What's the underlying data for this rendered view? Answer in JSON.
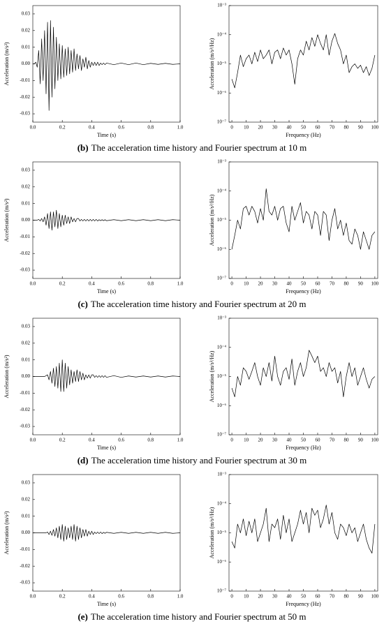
{
  "chart_data": [
    {
      "type": "line",
      "color": "#000000",
      "xlabel": "Time (s)",
      "ylabel": "Acceleration (m/s²)",
      "x": [
        0,
        0.01,
        0.02,
        0.03,
        0.04,
        0.05,
        0.06,
        0.07,
        0.08,
        0.09,
        0.1,
        0.11,
        0.12,
        0.13,
        0.14,
        0.15,
        0.16,
        0.17,
        0.18,
        0.19,
        0.2,
        0.21,
        0.22,
        0.23,
        0.24,
        0.25,
        0.26,
        0.27,
        0.28,
        0.29,
        0.3,
        0.31,
        0.32,
        0.33,
        0.34,
        0.35,
        0.36,
        0.37,
        0.38,
        0.39,
        0.4,
        0.41,
        0.42,
        0.43,
        0.44,
        0.45,
        0.46,
        0.47,
        0.48,
        0.49,
        0.5,
        0.55,
        0.6,
        0.65,
        0.7,
        0.75,
        0.8,
        0.85,
        0.9,
        0.95,
        1.0
      ],
      "values": [
        0,
        0,
        0.001,
        -0.002,
        0.008,
        -0.012,
        0.015,
        -0.01,
        0.02,
        -0.018,
        0.025,
        -0.028,
        0.026,
        -0.02,
        0.022,
        -0.015,
        0.016,
        -0.01,
        0.012,
        -0.009,
        0.011,
        -0.008,
        0.009,
        -0.007,
        0.01,
        -0.006,
        0.008,
        -0.005,
        0.009,
        -0.004,
        0.006,
        -0.003,
        0.005,
        -0.004,
        0.003,
        -0.002,
        0.004,
        -0.003,
        0.002,
        -0.002,
        0.001,
        -0.001,
        0.001,
        -0.001,
        0.001,
        -0.001,
        0.0005,
        -0.0005,
        0.0005,
        -0.0005,
        0.0005,
        -0.0005,
        0.0005,
        -0.0005,
        0.0005,
        -0.0005,
        0.0003,
        -0.0003,
        0.0003,
        -0.0003,
        0
      ],
      "xlim": [
        0,
        1
      ],
      "ylim": [
        -0.035,
        0.035
      ],
      "xticks": [
        {
          "value": 0,
          "label": "0.0"
        },
        0.2,
        0.4,
        0.6,
        0.8,
        {
          "value": 1,
          "label": "1.0"
        }
      ],
      "yticks": [
        -0.03,
        -0.02,
        -0.01,
        {
          "value": 0,
          "label": "0.00"
        },
        0.01,
        0.02,
        0.03
      ]
    },
    {
      "type": "line",
      "color": "#000000",
      "xlabel": "Frequency (Hz)",
      "ylabel": "Acceleration (m/s²/Hz)",
      "log_scale": true,
      "x": [
        0,
        2,
        4,
        6,
        8,
        10,
        12,
        14,
        16,
        18,
        20,
        22,
        24,
        26,
        28,
        30,
        32,
        34,
        36,
        38,
        40,
        42,
        44,
        46,
        48,
        50,
        52,
        54,
        56,
        58,
        60,
        62,
        64,
        66,
        68,
        70,
        72,
        74,
        76,
        78,
        80,
        82,
        84,
        86,
        88,
        90,
        92,
        94,
        96,
        98,
        100
      ],
      "values": [
        3e-06,
        1.5e-06,
        5e-06,
        2e-05,
        8e-06,
        1.5e-05,
        2e-05,
        1e-05,
        2.5e-05,
        1.2e-05,
        3e-05,
        1.5e-05,
        2e-05,
        3e-05,
        1e-05,
        2.5e-05,
        3e-05,
        1.5e-05,
        3.5e-05,
        2e-05,
        3e-05,
        1e-05,
        2e-06,
        1.5e-05,
        3e-05,
        2e-05,
        6e-05,
        3e-05,
        8e-05,
        4e-05,
        0.0001,
        5e-05,
        3e-05,
        0.0001,
        2e-05,
        6e-05,
        0.00011,
        5e-05,
        3e-05,
        1e-05,
        2e-05,
        5e-06,
        8e-06,
        1e-05,
        7e-06,
        9e-06,
        5e-06,
        8e-06,
        4e-06,
        7e-06,
        2e-05
      ],
      "xlim": [
        -2,
        102
      ],
      "ylim": [
        1e-07,
        0.001
      ],
      "xticks": [
        0,
        10,
        20,
        30,
        40,
        50,
        60,
        70,
        80,
        90,
        100
      ],
      "yticks": [
        {
          "value": 1e-07,
          "label": "10⁻⁷"
        },
        {
          "value": 1e-06,
          "label": "10⁻⁶"
        },
        {
          "value": 1e-05,
          "label": "10⁻⁵"
        },
        {
          "value": 0.0001,
          "label": "10⁻⁴"
        },
        {
          "value": 0.001,
          "label": "10⁻³"
        }
      ]
    },
    {
      "type": "line",
      "color": "#000000",
      "xlabel": "Time (s)",
      "ylabel": "Acceleration (m/s²)",
      "x": [
        0,
        0.01,
        0.02,
        0.03,
        0.04,
        0.05,
        0.06,
        0.07,
        0.08,
        0.09,
        0.1,
        0.11,
        0.12,
        0.13,
        0.14,
        0.15,
        0.16,
        0.17,
        0.18,
        0.19,
        0.2,
        0.21,
        0.22,
        0.23,
        0.24,
        0.25,
        0.26,
        0.27,
        0.28,
        0.29,
        0.3,
        0.31,
        0.32,
        0.33,
        0.34,
        0.35,
        0.36,
        0.37,
        0.38,
        0.39,
        0.4,
        0.41,
        0.42,
        0.43,
        0.44,
        0.45,
        0.46,
        0.47,
        0.48,
        0.49,
        0.5,
        0.55,
        0.6,
        0.65,
        0.7,
        0.75,
        0.8,
        0.85,
        0.9,
        0.95,
        1.0
      ],
      "values": [
        0,
        0,
        0,
        0,
        0.0005,
        -0.0005,
        0.001,
        -0.001,
        0.002,
        -0.003,
        0.004,
        -0.005,
        0.005,
        -0.006,
        0.005,
        -0.004,
        0.006,
        -0.005,
        0.004,
        -0.004,
        0.003,
        -0.003,
        0.003,
        -0.002,
        0.002,
        -0.002,
        0.002,
        -0.001,
        0.001,
        -0.001,
        0.001,
        0.001,
        -0.0005,
        0.0005,
        -0.0005,
        0.0005,
        -0.0005,
        0.0005,
        -0.0005,
        0.0005,
        -0.0005,
        0.0005,
        -0.0005,
        0.0005,
        -0.0005,
        0.0003,
        -0.0003,
        0.0003,
        -0.0003,
        0.0003,
        -0.0003,
        0.0003,
        -0.0003,
        0.0003,
        -0.0003,
        0.0003,
        -0.0003,
        0.0003,
        -0.0003,
        0.0003,
        0
      ],
      "xlim": [
        0,
        1
      ],
      "ylim": [
        -0.035,
        0.035
      ],
      "xticks": [
        {
          "value": 0,
          "label": "0.0"
        },
        0.2,
        0.4,
        0.6,
        0.8,
        {
          "value": 1,
          "label": "1.0"
        }
      ],
      "yticks": [
        -0.03,
        -0.02,
        -0.01,
        {
          "value": 0,
          "label": "0.00"
        },
        0.01,
        0.02,
        0.03
      ]
    },
    {
      "type": "line",
      "color": "#000000",
      "xlabel": "Frequency (Hz)",
      "ylabel": "Acceleration (m/s²/Hz)",
      "log_scale": true,
      "x": [
        0,
        2,
        4,
        6,
        8,
        10,
        12,
        14,
        16,
        18,
        20,
        22,
        24,
        26,
        28,
        30,
        32,
        34,
        36,
        38,
        40,
        42,
        44,
        46,
        48,
        50,
        52,
        54,
        56,
        58,
        60,
        62,
        64,
        66,
        68,
        70,
        72,
        74,
        76,
        78,
        80,
        82,
        84,
        86,
        88,
        90,
        92,
        94,
        96,
        98,
        100
      ],
      "values": [
        1e-06,
        3e-06,
        1e-05,
        5e-06,
        2.5e-05,
        3e-05,
        1.5e-05,
        3e-05,
        2e-05,
        8e-06,
        2.5e-05,
        1e-05,
        0.00012,
        2e-05,
        1.5e-05,
        3e-05,
        1e-05,
        2.5e-05,
        3e-05,
        8e-06,
        4e-06,
        3e-05,
        1e-05,
        2e-05,
        4e-05,
        8e-06,
        2e-05,
        1.5e-05,
        5e-06,
        2e-05,
        1.5e-05,
        3e-06,
        2e-05,
        1.5e-05,
        2e-06,
        1e-05,
        2.5e-05,
        5e-06,
        1e-05,
        3e-06,
        8e-06,
        2e-06,
        1.5e-06,
        5e-06,
        3e-06,
        1e-06,
        4e-06,
        2e-06,
        1e-06,
        3e-06,
        4e-06
      ],
      "xlim": [
        -2,
        102
      ],
      "ylim": [
        1e-07,
        0.001
      ],
      "xticks": [
        0,
        10,
        20,
        30,
        40,
        50,
        60,
        70,
        80,
        90,
        100
      ],
      "yticks": [
        {
          "value": 1e-07,
          "label": "10⁻⁷"
        },
        {
          "value": 1e-06,
          "label": "10⁻⁶"
        },
        {
          "value": 1e-05,
          "label": "10⁻⁵"
        },
        {
          "value": 0.0001,
          "label": "10⁻⁴"
        },
        {
          "value": 0.001,
          "label": "10⁻³"
        }
      ]
    },
    {
      "type": "line",
      "color": "#000000",
      "xlabel": "Time (s)",
      "ylabel": "Acceleration (m/s²)",
      "x": [
        0,
        0.01,
        0.02,
        0.03,
        0.04,
        0.05,
        0.06,
        0.07,
        0.08,
        0.09,
        0.1,
        0.11,
        0.12,
        0.13,
        0.14,
        0.15,
        0.16,
        0.17,
        0.18,
        0.19,
        0.2,
        0.21,
        0.22,
        0.23,
        0.24,
        0.25,
        0.26,
        0.27,
        0.28,
        0.29,
        0.3,
        0.31,
        0.32,
        0.33,
        0.34,
        0.35,
        0.36,
        0.37,
        0.38,
        0.39,
        0.4,
        0.41,
        0.42,
        0.43,
        0.44,
        0.45,
        0.46,
        0.47,
        0.48,
        0.49,
        0.5,
        0.55,
        0.6,
        0.65,
        0.7,
        0.75,
        0.8,
        0.85,
        0.9,
        0.95,
        1.0
      ],
      "values": [
        0,
        0,
        0,
        0,
        0,
        0,
        0,
        0,
        0,
        0.0005,
        0.001,
        -0.002,
        0.003,
        -0.004,
        0.005,
        -0.006,
        0.006,
        -0.007,
        0.008,
        -0.009,
        0.01,
        -0.009,
        0.008,
        -0.007,
        0.006,
        -0.005,
        0.004,
        -0.004,
        0.003,
        -0.003,
        0.004,
        -0.003,
        0.003,
        -0.002,
        0.002,
        -0.002,
        0.001,
        -0.001,
        0.001,
        -0.001,
        0.001,
        0.001,
        -0.0005,
        0.0005,
        -0.0005,
        0.0005,
        -0.0005,
        0.0005,
        -0.0005,
        0.0005,
        -0.0005,
        0.0005,
        -0.0005,
        0.0003,
        -0.0003,
        0.0003,
        -0.0003,
        0.0003,
        -0.0003,
        0.0003,
        0
      ],
      "xlim": [
        0,
        1
      ],
      "ylim": [
        -0.035,
        0.035
      ],
      "xticks": [
        {
          "value": 0,
          "label": "0.0"
        },
        0.2,
        0.4,
        0.6,
        0.8,
        {
          "value": 1,
          "label": "1.0"
        }
      ],
      "yticks": [
        -0.03,
        -0.02,
        -0.01,
        {
          "value": 0,
          "label": "0.00"
        },
        0.01,
        0.02,
        0.03
      ]
    },
    {
      "type": "line",
      "color": "#000000",
      "xlabel": "Frequency (Hz)",
      "ylabel": "Acceleration (m/s²/Hz)",
      "log_scale": true,
      "x": [
        0,
        2,
        4,
        6,
        8,
        10,
        12,
        14,
        16,
        18,
        20,
        22,
        24,
        26,
        28,
        30,
        32,
        34,
        36,
        38,
        40,
        42,
        44,
        46,
        48,
        50,
        52,
        54,
        56,
        58,
        60,
        62,
        64,
        66,
        68,
        70,
        72,
        74,
        76,
        78,
        80,
        82,
        84,
        86,
        88,
        90,
        92,
        94,
        96,
        98,
        100
      ],
      "values": [
        4e-06,
        2e-06,
        1e-05,
        5e-06,
        2e-05,
        1.5e-05,
        8e-06,
        1.5e-05,
        3e-05,
        1e-05,
        5e-06,
        2e-05,
        1e-05,
        3e-05,
        7e-06,
        5e-05,
        1e-05,
        5e-06,
        1.5e-05,
        2e-05,
        8e-06,
        4e-05,
        5e-06,
        1.5e-05,
        3e-05,
        1e-05,
        2e-05,
        8e-05,
        5e-05,
        3e-05,
        5e-05,
        1.5e-05,
        2e-05,
        1e-05,
        3e-05,
        1.5e-05,
        2e-05,
        6e-06,
        1.5e-05,
        2e-06,
        1e-05,
        3e-05,
        1e-05,
        2e-05,
        5e-06,
        1e-05,
        2e-05,
        8e-06,
        4e-06,
        8e-06,
        1e-05
      ],
      "xlim": [
        -2,
        102
      ],
      "ylim": [
        1e-07,
        0.001
      ],
      "xticks": [
        0,
        10,
        20,
        30,
        40,
        50,
        60,
        70,
        80,
        90,
        100
      ],
      "yticks": [
        {
          "value": 1e-07,
          "label": "10⁻⁷"
        },
        {
          "value": 1e-06,
          "label": "10⁻⁶"
        },
        {
          "value": 1e-05,
          "label": "10⁻⁵"
        },
        {
          "value": 0.0001,
          "label": "10⁻⁴"
        },
        {
          "value": 0.001,
          "label": "10⁻³"
        }
      ]
    },
    {
      "type": "line",
      "color": "#000000",
      "xlabel": "Time (s)",
      "ylabel": "Acceleration (m/s²)",
      "x": [
        0,
        0.01,
        0.02,
        0.03,
        0.04,
        0.05,
        0.06,
        0.07,
        0.08,
        0.09,
        0.1,
        0.11,
        0.12,
        0.13,
        0.14,
        0.15,
        0.16,
        0.17,
        0.18,
        0.19,
        0.2,
        0.21,
        0.22,
        0.23,
        0.24,
        0.25,
        0.26,
        0.27,
        0.28,
        0.29,
        0.3,
        0.31,
        0.32,
        0.33,
        0.34,
        0.35,
        0.36,
        0.37,
        0.38,
        0.39,
        0.4,
        0.41,
        0.42,
        0.43,
        0.44,
        0.45,
        0.46,
        0.47,
        0.48,
        0.49,
        0.5,
        0.55,
        0.6,
        0.65,
        0.7,
        0.75,
        0.8,
        0.85,
        0.9,
        0.95,
        1.0
      ],
      "values": [
        0,
        0,
        0,
        0,
        0,
        0,
        0,
        0,
        0,
        0,
        0.0005,
        -0.001,
        0.001,
        -0.0015,
        0.002,
        -0.002,
        0.003,
        -0.003,
        0.004,
        -0.004,
        0.005,
        -0.005,
        0.004,
        -0.004,
        0.003,
        -0.003,
        0.004,
        -0.004,
        0.005,
        -0.005,
        0.004,
        -0.004,
        0.003,
        -0.003,
        0.002,
        -0.002,
        0.002,
        -0.002,
        0.001,
        -0.001,
        0.001,
        -0.001,
        0.0005,
        -0.0005,
        0.0005,
        -0.0005,
        0.0005,
        -0.0005,
        0.0003,
        -0.0003,
        0.0003,
        -0.0003,
        0.0003,
        -0.0003,
        0.0003,
        -0.0003,
        0.0003,
        -0.0003,
        0.0003,
        -0.0003,
        0
      ],
      "xlim": [
        0,
        1
      ],
      "ylim": [
        -0.035,
        0.035
      ],
      "xticks": [
        {
          "value": 0,
          "label": "0.0"
        },
        0.2,
        0.4,
        0.6,
        0.8,
        {
          "value": 1,
          "label": "1.0"
        }
      ],
      "yticks": [
        -0.03,
        -0.02,
        -0.01,
        {
          "value": 0,
          "label": "0.00"
        },
        0.01,
        0.02,
        0.03
      ]
    },
    {
      "type": "line",
      "color": "#000000",
      "xlabel": "Frequency (Hz)",
      "ylabel": "Acceleration (m/s²/Hz)",
      "log_scale": true,
      "x": [
        0,
        2,
        4,
        6,
        8,
        10,
        12,
        14,
        16,
        18,
        20,
        22,
        24,
        26,
        28,
        30,
        32,
        34,
        36,
        38,
        40,
        42,
        44,
        46,
        48,
        50,
        52,
        54,
        56,
        58,
        60,
        62,
        64,
        66,
        68,
        70,
        72,
        74,
        76,
        78,
        80,
        82,
        84,
        86,
        88,
        90,
        92,
        94,
        96,
        98,
        100
      ],
      "values": [
        5e-06,
        3e-06,
        2e-05,
        1e-05,
        3e-05,
        8e-06,
        2.5e-05,
        1e-05,
        3e-05,
        5e-06,
        1e-05,
        2e-05,
        7e-05,
        5e-06,
        2e-05,
        1.5e-05,
        3e-05,
        6e-06,
        4e-05,
        1e-05,
        3e-05,
        5e-06,
        1e-05,
        2e-05,
        6e-05,
        2e-05,
        5e-05,
        1e-05,
        7e-05,
        4e-05,
        6e-05,
        1.5e-05,
        3e-05,
        9e-05,
        2e-05,
        5e-05,
        1e-05,
        6e-06,
        2e-05,
        1.5e-05,
        8e-06,
        2e-05,
        1e-05,
        1.5e-05,
        5e-06,
        1e-05,
        2e-05,
        6e-06,
        3e-06,
        2e-06,
        2e-05
      ],
      "xlim": [
        -2,
        102
      ],
      "ylim": [
        1e-07,
        0.001
      ],
      "xticks": [
        0,
        10,
        20,
        30,
        40,
        50,
        60,
        70,
        80,
        90,
        100
      ],
      "yticks": [
        {
          "value": 1e-07,
          "label": "10⁻⁷"
        },
        {
          "value": 1e-06,
          "label": "10⁻⁶"
        },
        {
          "value": 1e-05,
          "label": "10⁻⁵"
        },
        {
          "value": 0.0001,
          "label": "10⁻⁴"
        },
        {
          "value": 0.001,
          "label": "10⁻³"
        }
      ]
    }
  ],
  "captions": [
    {
      "letter": "(b)",
      "text": "The acceleration time history and Fourier spectrum at 10 m"
    },
    {
      "letter": "(c)",
      "text": "The acceleration time history and Fourier spectrum at 20 m"
    },
    {
      "letter": "(d)",
      "text": "The acceleration time history and Fourier spectrum at 30 m"
    },
    {
      "letter": "(e)",
      "text": "The acceleration time history and Fourier spectrum at 50 m"
    }
  ]
}
